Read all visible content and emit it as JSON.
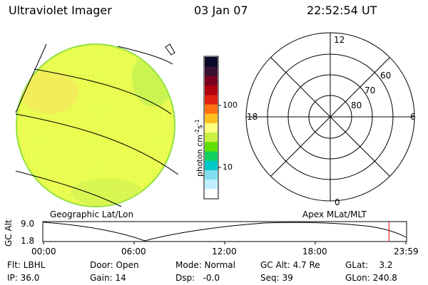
{
  "header": {
    "title": "Ultraviolet Imager",
    "date": "03 Jan 07",
    "time": "22:52:54 UT"
  },
  "colorbar": {
    "unit_label": "photon cm",
    "unit_sup1": "-2",
    "unit_mid": "s",
    "unit_sup2": "-1",
    "tick_high": "100",
    "tick_low": "10",
    "colors": [
      "#0a0a2a",
      "#3a1030",
      "#7a0020",
      "#b00010",
      "#e02010",
      "#ff7010",
      "#ffc020",
      "#ffff80",
      "#c8f040",
      "#60e000",
      "#10d060",
      "#00c8c8",
      "#80e0f0",
      "#c0f0ff",
      "#ffffff"
    ]
  },
  "geo_map": {
    "fill_color": "#e8ff50",
    "edge_color": "#90e040"
  },
  "polar_plot": {
    "mlt_top": "12",
    "mlt_left": "18",
    "mlt_right": "6",
    "mlt_bottom": "0",
    "lat_60": "60",
    "lat_70": "70",
    "lat_80": "80"
  },
  "labels": {
    "geo": "Geographic Lat/Lon",
    "apex": "Apex  MLat/MLT"
  },
  "altitude_panel": {
    "ylabel": "GC Alt",
    "y_top": "9.0",
    "y_bottom": "1.8",
    "x_ticks": [
      "00:00",
      "06:00",
      "12:00",
      "18:00",
      "23:59"
    ],
    "current_time_hours": 22.88,
    "marker_color": "#e00000"
  },
  "status": {
    "flt": "Flt: LBHL",
    "ip": "IP: 36.0",
    "door": "Door: Open",
    "gain": "Gain: 14",
    "mode": "Mode: Normal",
    "dsp": "Dsp:   -0.0",
    "gc_alt": "GC Alt: 4.7 Re",
    "seq": "Seq: 39",
    "glat": "GLat:    3.2",
    "glon": "GLon: 240.8"
  }
}
